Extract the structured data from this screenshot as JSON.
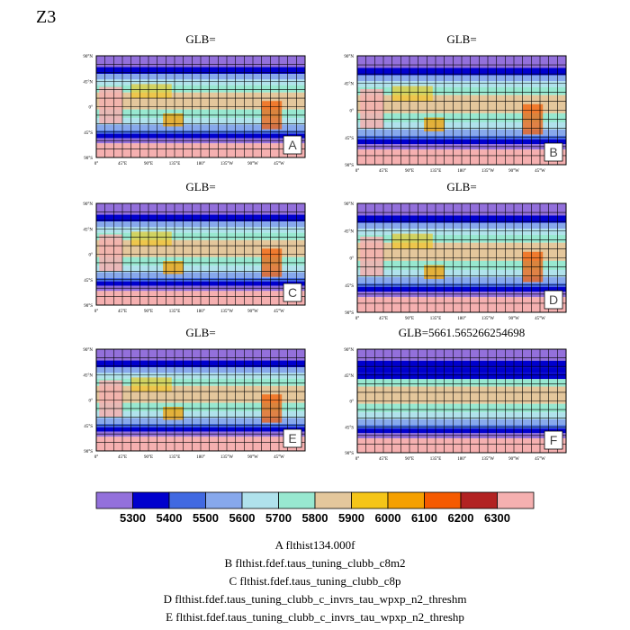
{
  "figure": {
    "title": "Z3"
  },
  "panels": [
    {
      "title": "GLB=",
      "letter": "A"
    },
    {
      "title": "GLB=",
      "letter": "B"
    },
    {
      "title": "GLB=",
      "letter": "C"
    },
    {
      "title": "GLB=",
      "letter": "D"
    },
    {
      "title": "GLB=",
      "letter": "E"
    },
    {
      "title": "GLB=5661.565266254698",
      "letter": "F"
    }
  ],
  "axes": {
    "y_ticks": [
      "90°N",
      "45°N",
      "0°",
      "45°S",
      "90°S"
    ],
    "x_ticks": [
      "0°",
      "45°E",
      "90°E",
      "135°E",
      "180°",
      "135°W",
      "90°W",
      "45°W"
    ]
  },
  "colorbar": {
    "colors": [
      "#9370db",
      "#0000cd",
      "#4169e1",
      "#87a8ec",
      "#b0e2ec",
      "#98e8d0",
      "#e4c79c",
      "#f5c518",
      "#f5a000",
      "#f55a00",
      "#b22222",
      "#f5b0b0"
    ],
    "labels": [
      "5300",
      "5400",
      "5500",
      "5600",
      "5700",
      "5800",
      "5900",
      "6000",
      "6100",
      "6200",
      "6300"
    ]
  },
  "captions": [
    "A  flthist134.000f",
    "B  flthist.fdef.taus_tuning_clubb_c8m2",
    "C  flthist.fdef.taus_tuning_clubb_c8p",
    "D  flthist.fdef.taus_tuning_clubb_c_invrs_tau_wpxp_n2_threshm",
    "E  flthist.fdef.taus_tuning_clubb_c_invrs_tau_wpxp_n2_threshp"
  ],
  "chart_data": {
    "type": "heatmap",
    "title": "Z3",
    "variable": "Z3",
    "panel_titles": [
      "GLB=",
      "GLB=",
      "GLB=",
      "GLB=",
      "GLB=",
      "GLB=5661.565266254698"
    ],
    "panel_letters": [
      "A",
      "B",
      "C",
      "D",
      "E",
      "F"
    ],
    "x_range": [
      0,
      360
    ],
    "y_range": [
      -90,
      90
    ],
    "x_tick_labels": [
      "0°",
      "45°E",
      "90°E",
      "135°E",
      "180°",
      "135°W",
      "90°W",
      "45°W"
    ],
    "y_tick_labels": [
      "90°N",
      "45°N",
      "0°",
      "45°S",
      "90°S"
    ],
    "grid": true,
    "contour_levels": [
      5300,
      5400,
      5500,
      5600,
      5700,
      5800,
      5900,
      6000,
      6100,
      6200,
      6300
    ],
    "zonal_bands": [
      {
        "lat_range": [
          70,
          90
        ],
        "level_index": 0
      },
      {
        "lat_range": [
          58,
          70
        ],
        "level_index": 1
      },
      {
        "lat_range": [
          48,
          58
        ],
        "level_index": 3
      },
      {
        "lat_range": [
          38,
          48
        ],
        "level_index": 4
      },
      {
        "lat_range": [
          25,
          38
        ],
        "level_index": 5
      },
      {
        "lat_range": [
          -5,
          25
        ],
        "level_index": 6
      },
      {
        "lat_range": [
          -20,
          -5
        ],
        "level_index": 5
      },
      {
        "lat_range": [
          -32,
          -20
        ],
        "level_index": 4
      },
      {
        "lat_range": [
          -42,
          -32
        ],
        "level_index": 3
      },
      {
        "lat_range": [
          -48,
          -42
        ],
        "level_index": 2
      },
      {
        "lat_range": [
          -56,
          -48
        ],
        "level_index": 1
      },
      {
        "lat_range": [
          -65,
          -56
        ],
        "level_index": 0
      },
      {
        "lat_range": [
          -75,
          -65
        ],
        "level_index": 11
      },
      {
        "lat_range": [
          -90,
          -75
        ],
        "level_index": 11
      }
    ]
  }
}
